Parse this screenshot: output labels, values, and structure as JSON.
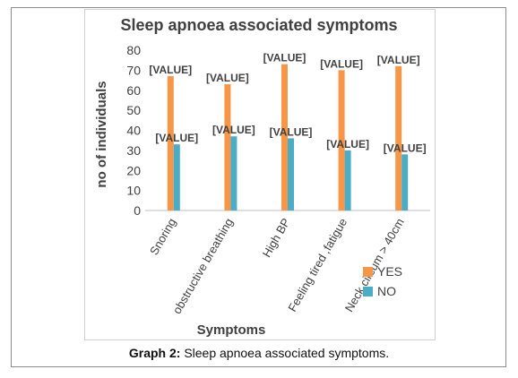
{
  "chart_data": {
    "type": "bar",
    "title": "Sleep apnoea associated symptoms",
    "xlabel": "Symptoms",
    "ylabel": "no of individuals",
    "ylim": [
      0,
      80
    ],
    "yticks": [
      0,
      10,
      20,
      30,
      40,
      50,
      60,
      70,
      80
    ],
    "categories": [
      "Snoring",
      "obstructive breathing",
      "High BP",
      "Feeling tired ,fatigue",
      "Neck circum > 40cm"
    ],
    "series": [
      {
        "name": "YES",
        "color": "#f79646",
        "values": [
          67,
          63,
          73,
          70,
          72
        ],
        "data_labels": [
          "[VALUE]",
          "[VALUE]",
          "[VALUE]",
          "[VALUE]",
          "[VALUE]"
        ]
      },
      {
        "name": "NO",
        "color": "#4bacc6",
        "values": [
          33,
          37,
          36,
          30,
          28
        ],
        "data_labels": [
          "[VALUE]",
          "[VALUE]",
          "[VALUE]",
          "[VALUE]",
          "[VALUE]"
        ]
      }
    ],
    "grid": false,
    "legend_position": "bottom-right"
  },
  "caption": {
    "label": "Graph 2:",
    "text": " Sleep apnoea associated symptoms."
  }
}
